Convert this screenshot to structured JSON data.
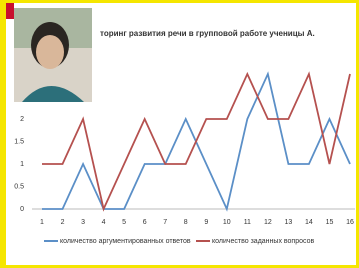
{
  "chart_data": {
    "type": "line",
    "title": "торинг развития речи в групповой работе ученицы А.",
    "categories": [
      "1",
      "2",
      "3",
      "4",
      "5",
      "6",
      "7",
      "8",
      "9",
      "10",
      "11",
      "12",
      "13",
      "14",
      "15",
      "16"
    ],
    "series": [
      {
        "name": "количество аргументированных ответов",
        "color": "#5b8fc7",
        "values": [
          0,
          0,
          1,
          0,
          0,
          1,
          1,
          2,
          1,
          0,
          2,
          3,
          1,
          1,
          2,
          1
        ]
      },
      {
        "name": "количество заданных вопросов",
        "color": "#b5514f",
        "values": [
          1,
          1,
          2,
          0,
          1,
          2,
          1,
          1,
          2,
          2,
          3,
          2,
          2,
          3,
          1,
          3
        ]
      }
    ],
    "ylim": [
      0,
      3
    ],
    "yticks": [
      0,
      0.5,
      1,
      1.5,
      2
    ],
    "grid": false
  }
}
